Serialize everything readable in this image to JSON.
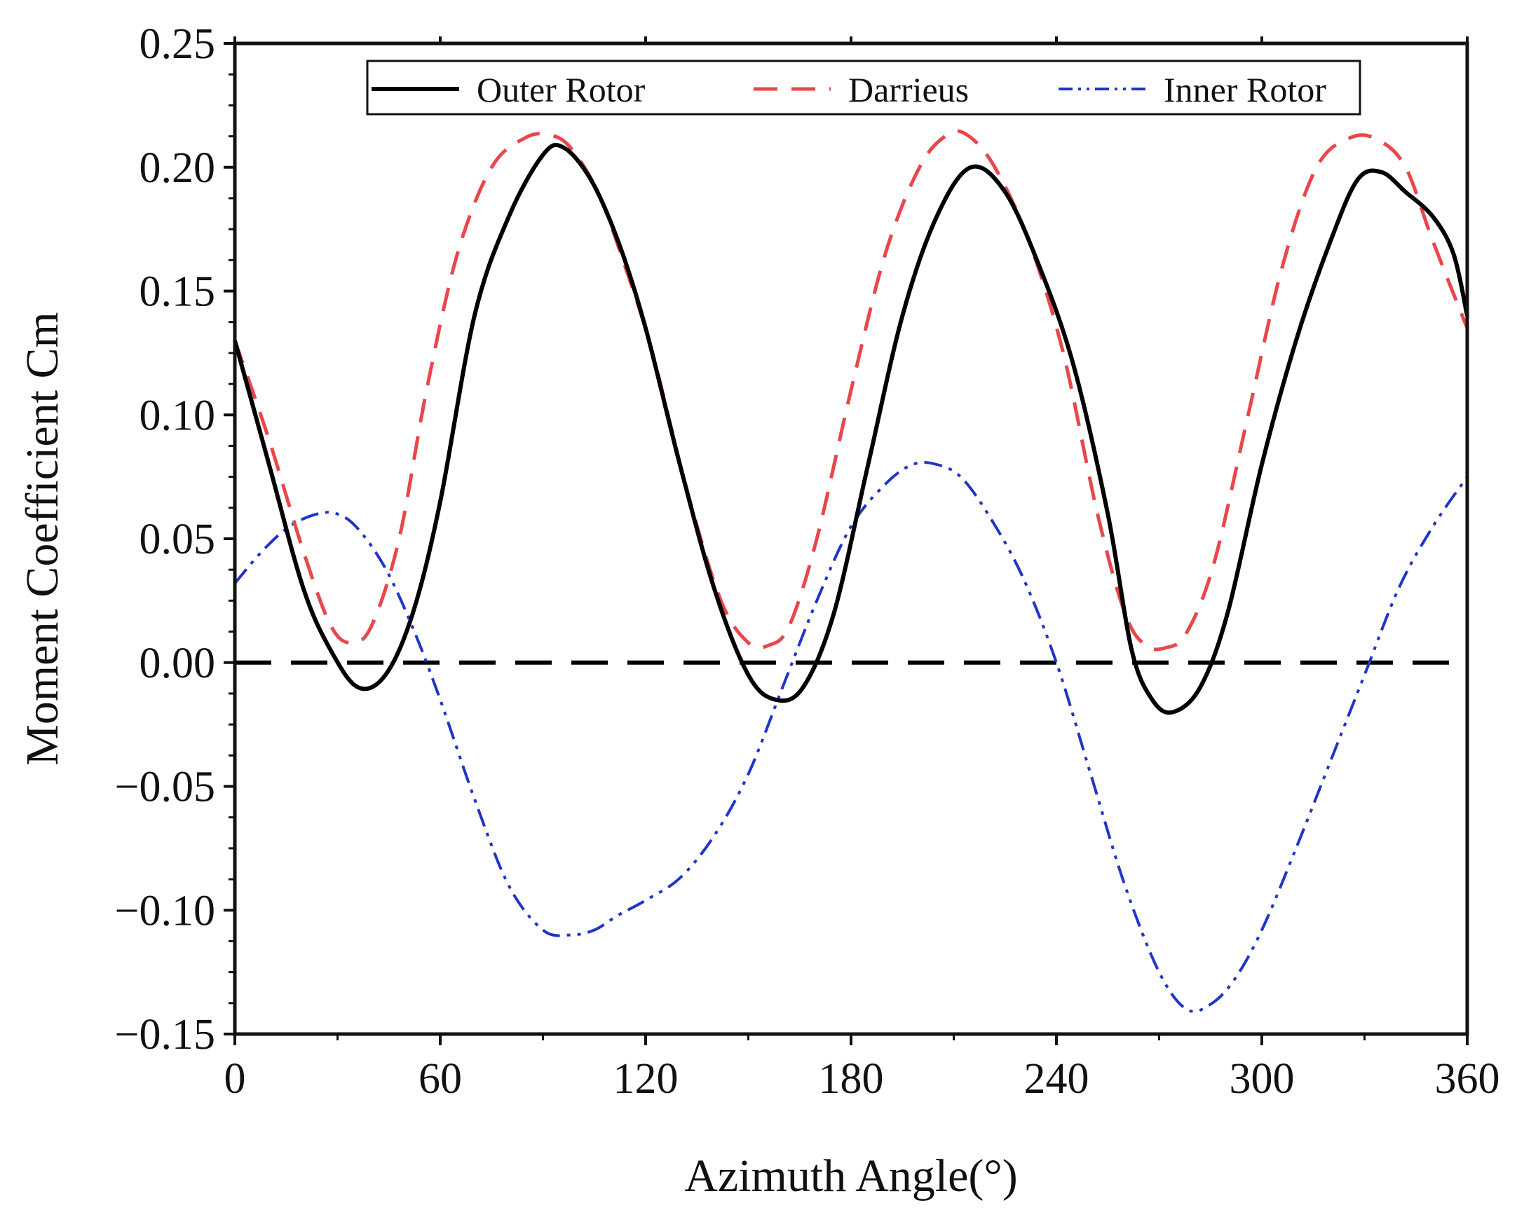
{
  "chart_data": {
    "type": "line",
    "xlabel": "Azimuth Angle(°)",
    "ylabel": "Moment Coefficient Cm",
    "xlim": [
      0,
      360
    ],
    "ylim": [
      -0.15,
      0.25
    ],
    "x_ticks": [
      0,
      60,
      120,
      180,
      240,
      300,
      360
    ],
    "x_tick_labels": [
      "0",
      "60",
      "120",
      "180",
      "240",
      "300",
      "360"
    ],
    "y_ticks": [
      -0.15,
      -0.1,
      -0.05,
      0,
      0.05,
      0.1,
      0.15,
      0.2,
      0.25
    ],
    "y_tick_labels": [
      "−0.15",
      "−0.10",
      "−0.05",
      "0.00",
      "0.05",
      "0.10",
      "0.15",
      "0.20",
      "0.25"
    ],
    "legend_position": "top",
    "reference_line": {
      "y": 0,
      "style": "dashed",
      "color": "#000000"
    },
    "series": [
      {
        "name": "Outer Rotor",
        "color": "#000000",
        "style": "solid",
        "x": [
          0,
          10,
          20,
          28,
          36,
          44,
          52,
          60,
          70,
          80,
          90,
          96,
          104,
          112,
          120,
          130,
          140,
          150,
          158,
          166,
          175,
          185,
          195,
          205,
          215,
          225,
          235,
          245,
          255,
          262,
          268,
          274,
          282,
          290,
          300,
          310,
          320,
          328,
          335,
          342,
          350,
          356,
          360
        ],
        "values": [
          0.13,
          0.08,
          0.03,
          0.005,
          -0.01,
          -0.005,
          0.02,
          0.065,
          0.14,
          0.18,
          0.205,
          0.208,
          0.195,
          0.17,
          0.135,
          0.08,
          0.03,
          -0.005,
          -0.015,
          -0.01,
          0.02,
          0.08,
          0.14,
          0.18,
          0.2,
          0.19,
          0.16,
          0.12,
          0.06,
          0.005,
          -0.015,
          -0.02,
          -0.01,
          0.02,
          0.08,
          0.13,
          0.17,
          0.195,
          0.198,
          0.19,
          0.18,
          0.165,
          0.14
        ]
      },
      {
        "name": "Darrieus",
        "color": "#e8474b",
        "style": "dashed",
        "x": [
          0,
          10,
          20,
          28,
          34,
          40,
          48,
          56,
          65,
          75,
          85,
          92,
          98,
          106,
          114,
          122,
          132,
          142,
          150,
          156,
          162,
          170,
          180,
          190,
          200,
          208,
          214,
          222,
          232,
          242,
          252,
          260,
          266,
          272,
          278,
          286,
          296,
          306,
          316,
          326,
          334,
          342,
          350,
          360
        ],
        "values": [
          0.13,
          0.09,
          0.045,
          0.015,
          0.008,
          0.015,
          0.05,
          0.11,
          0.165,
          0.2,
          0.212,
          0.213,
          0.208,
          0.19,
          0.16,
          0.125,
          0.07,
          0.025,
          0.008,
          0.007,
          0.015,
          0.05,
          0.11,
          0.165,
          0.2,
          0.213,
          0.213,
          0.2,
          0.17,
          0.125,
          0.06,
          0.02,
          0.007,
          0.006,
          0.012,
          0.04,
          0.1,
          0.16,
          0.2,
          0.212,
          0.211,
          0.2,
          0.17,
          0.135
        ]
      },
      {
        "name": "Inner Rotor",
        "color": "#1f35c8",
        "style": "dash-dot-dot",
        "x": [
          0,
          8,
          16,
          24,
          30,
          36,
          44,
          52,
          60,
          70,
          80,
          90,
          98,
          105,
          112,
          120,
          130,
          140,
          150,
          160,
          170,
          180,
          190,
          198,
          205,
          212,
          220,
          230,
          240,
          250,
          260,
          270,
          278,
          285,
          292,
          300,
          310,
          320,
          330,
          340,
          350,
          360
        ],
        "values": [
          0.032,
          0.045,
          0.055,
          0.06,
          0.06,
          0.054,
          0.038,
          0.014,
          -0.015,
          -0.055,
          -0.09,
          -0.108,
          -0.11,
          -0.108,
          -0.102,
          -0.096,
          -0.087,
          -0.07,
          -0.045,
          -0.01,
          0.025,
          0.055,
          0.072,
          0.08,
          0.08,
          0.075,
          0.06,
          0.035,
          0.0,
          -0.045,
          -0.09,
          -0.125,
          -0.14,
          -0.138,
          -0.128,
          -0.108,
          -0.075,
          -0.04,
          -0.005,
          0.03,
          0.055,
          0.075
        ]
      }
    ]
  }
}
